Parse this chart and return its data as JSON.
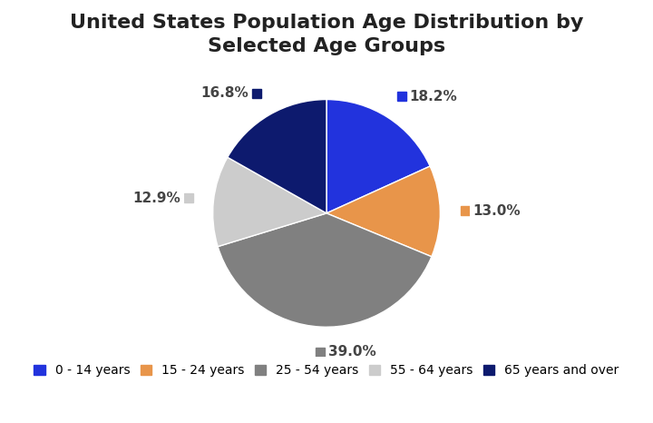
{
  "title": "United States Population Age Distribution by\nSelected Age Groups",
  "slices": [
    18.2,
    13.0,
    39.0,
    12.9,
    16.8
  ],
  "labels": [
    "0 - 14 years",
    "15 - 24 years",
    "25 - 54 years",
    "55 - 64 years",
    "65 years and over"
  ],
  "colors": [
    "#2233dd",
    "#e8954a",
    "#808080",
    "#cccccc",
    "#0d1a6e"
  ],
  "pct_labels": [
    "18.2%",
    "13.0%",
    "39.0%",
    "12.9%",
    "16.8%"
  ],
  "background_color": "#ffffff",
  "title_fontsize": 16,
  "legend_fontsize": 10,
  "startangle": 90,
  "label_dist": 1.22
}
